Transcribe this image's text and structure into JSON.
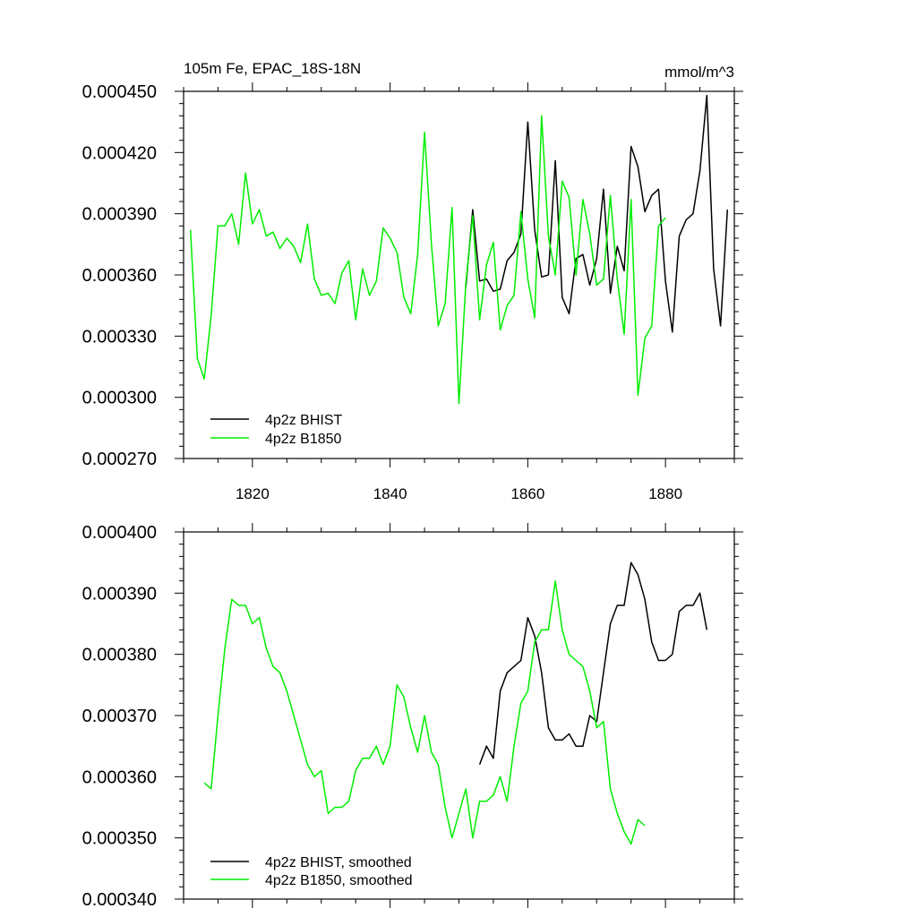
{
  "colors": {
    "bhist": "#000000",
    "b1850": "#00ee00"
  },
  "chart_data": [
    {
      "type": "line",
      "title_left": "105m Fe, EPAC_18S-18N",
      "title_right": "mmol/m^3",
      "xlim": [
        1810,
        1890
      ],
      "ylim": [
        0.00027,
        0.00045
      ],
      "x_ticks": [
        1820,
        1840,
        1860,
        1880
      ],
      "x_tick_labels": [
        "1820",
        "1840",
        "1860",
        "1880"
      ],
      "y_ticks": [
        "0.000270",
        "0.000300",
        "0.000330",
        "0.000360",
        "0.000390",
        "0.000420",
        "0.000450"
      ],
      "legend_position": "bottom-left",
      "series": [
        {
          "name": "4p2z BHIST",
          "color": "#000000",
          "x": [
            1851,
            1852,
            1853,
            1854,
            1855,
            1856,
            1857,
            1858,
            1859,
            1860,
            1861,
            1862,
            1863,
            1864,
            1865,
            1866,
            1867,
            1868,
            1869,
            1870,
            1871,
            1872,
            1873,
            1874,
            1875,
            1876,
            1877,
            1878,
            1879,
            1880,
            1881,
            1882,
            1883,
            1884,
            1885,
            1886,
            1887,
            1888,
            1889
          ],
          "y": [
            0.000354,
            0.000392,
            0.000357,
            0.000358,
            0.000352,
            0.000353,
            0.000367,
            0.000371,
            0.00038,
            0.000435,
            0.000382,
            0.000359,
            0.00036,
            0.000416,
            0.000349,
            0.000341,
            0.000368,
            0.00037,
            0.000355,
            0.000368,
            0.000402,
            0.000351,
            0.000374,
            0.000362,
            0.000423,
            0.000413,
            0.000391,
            0.000399,
            0.000402,
            0.000357,
            0.000332,
            0.000379,
            0.000387,
            0.00039,
            0.000411,
            0.000448,
            0.000363,
            0.000335,
            0.000392
          ]
        },
        {
          "name": "4p2z B1850",
          "color": "#00ee00",
          "x": [
            1811,
            1812,
            1813,
            1814,
            1815,
            1816,
            1817,
            1818,
            1819,
            1820,
            1821,
            1822,
            1823,
            1824,
            1825,
            1826,
            1827,
            1828,
            1829,
            1830,
            1831,
            1832,
            1833,
            1834,
            1835,
            1836,
            1837,
            1838,
            1839,
            1840,
            1841,
            1842,
            1843,
            1844,
            1845,
            1846,
            1847,
            1848,
            1849,
            1850,
            1851,
            1852,
            1853,
            1854,
            1855,
            1856,
            1857,
            1858,
            1859,
            1860,
            1861,
            1862,
            1863,
            1864,
            1865,
            1866,
            1867,
            1868,
            1869,
            1870,
            1871,
            1872,
            1873,
            1874,
            1875,
            1876,
            1877,
            1878,
            1879,
            1880
          ],
          "y": [
            0.000382,
            0.000319,
            0.000309,
            0.00034,
            0.000384,
            0.000384,
            0.00039,
            0.000375,
            0.00041,
            0.000385,
            0.000392,
            0.000379,
            0.000381,
            0.000373,
            0.000378,
            0.000374,
            0.000366,
            0.000385,
            0.000358,
            0.00035,
            0.000351,
            0.000346,
            0.000361,
            0.000367,
            0.000338,
            0.000363,
            0.00035,
            0.000357,
            0.000383,
            0.000378,
            0.000371,
            0.000349,
            0.000341,
            0.00037,
            0.00043,
            0.000375,
            0.000335,
            0.000346,
            0.000393,
            0.000297,
            0.000356,
            0.000389,
            0.000338,
            0.000365,
            0.000376,
            0.000333,
            0.000345,
            0.00035,
            0.000391,
            0.000358,
            0.000339,
            0.000438,
            0.000379,
            0.00036,
            0.000406,
            0.000398,
            0.00036,
            0.000397,
            0.00038,
            0.000355,
            0.000358,
            0.000399,
            0.000358,
            0.000331,
            0.000397,
            0.000301,
            0.000329,
            0.000335,
            0.000384,
            0.000388
          ]
        }
      ]
    },
    {
      "type": "line",
      "xlim": [
        1810,
        1890
      ],
      "ylim": [
        0.00034,
        0.0004
      ],
      "x_ticks": [
        1820,
        1840,
        1860,
        1880
      ],
      "y_ticks": [
        "0.000340",
        "0.000350",
        "0.000360",
        "0.000370",
        "0.000380",
        "0.000390",
        "0.000400"
      ],
      "legend_position": "bottom-left",
      "series": [
        {
          "name": "4p2z BHIST, smoothed",
          "color": "#000000",
          "x": [
            1853,
            1854,
            1855,
            1856,
            1857,
            1858,
            1859,
            1860,
            1861,
            1862,
            1863,
            1864,
            1865,
            1866,
            1867,
            1868,
            1869,
            1870,
            1871,
            1872,
            1873,
            1874,
            1875,
            1876,
            1877,
            1878,
            1879,
            1880,
            1881,
            1882,
            1883,
            1884,
            1885,
            1886
          ],
          "y": [
            0.000362,
            0.000365,
            0.000363,
            0.000374,
            0.000377,
            0.000378,
            0.000379,
            0.000386,
            0.000383,
            0.000377,
            0.000368,
            0.000366,
            0.000366,
            0.000367,
            0.000365,
            0.000365,
            0.00037,
            0.000369,
            0.000377,
            0.000385,
            0.000388,
            0.000388,
            0.000395,
            0.000393,
            0.000389,
            0.000382,
            0.000379,
            0.000379,
            0.00038,
            0.000387,
            0.000388,
            0.000388,
            0.00039,
            0.000384
          ]
        },
        {
          "name": "4p2z B1850, smoothed",
          "color": "#00ee00",
          "x": [
            1813,
            1814,
            1815,
            1816,
            1817,
            1818,
            1819,
            1820,
            1821,
            1822,
            1823,
            1824,
            1825,
            1826,
            1827,
            1828,
            1829,
            1830,
            1831,
            1832,
            1833,
            1834,
            1835,
            1836,
            1837,
            1838,
            1839,
            1840,
            1841,
            1842,
            1843,
            1844,
            1845,
            1846,
            1847,
            1848,
            1849,
            1850,
            1851,
            1852,
            1853,
            1854,
            1855,
            1856,
            1857,
            1858,
            1859,
            1860,
            1861,
            1862,
            1863,
            1864,
            1865,
            1866,
            1867,
            1868,
            1869,
            1870,
            1871,
            1872,
            1873,
            1874,
            1875,
            1876,
            1877
          ],
          "y": [
            0.000359,
            0.000358,
            0.00037,
            0.000381,
            0.000389,
            0.000388,
            0.000388,
            0.000385,
            0.000386,
            0.000381,
            0.000378,
            0.000377,
            0.000374,
            0.00037,
            0.000366,
            0.000362,
            0.00036,
            0.000361,
            0.000354,
            0.000355,
            0.000355,
            0.000356,
            0.000361,
            0.000363,
            0.000363,
            0.000365,
            0.000362,
            0.000365,
            0.000375,
            0.000373,
            0.000368,
            0.000364,
            0.00037,
            0.000364,
            0.000362,
            0.000355,
            0.00035,
            0.000354,
            0.000358,
            0.00035,
            0.000356,
            0.000356,
            0.000357,
            0.00036,
            0.000356,
            0.000365,
            0.000372,
            0.000374,
            0.000382,
            0.000384,
            0.000384,
            0.000392,
            0.000384,
            0.00038,
            0.000379,
            0.000378,
            0.000374,
            0.000368,
            0.000369,
            0.000358,
            0.000354,
            0.000351,
            0.000349,
            0.000353,
            0.000352
          ]
        }
      ]
    }
  ]
}
